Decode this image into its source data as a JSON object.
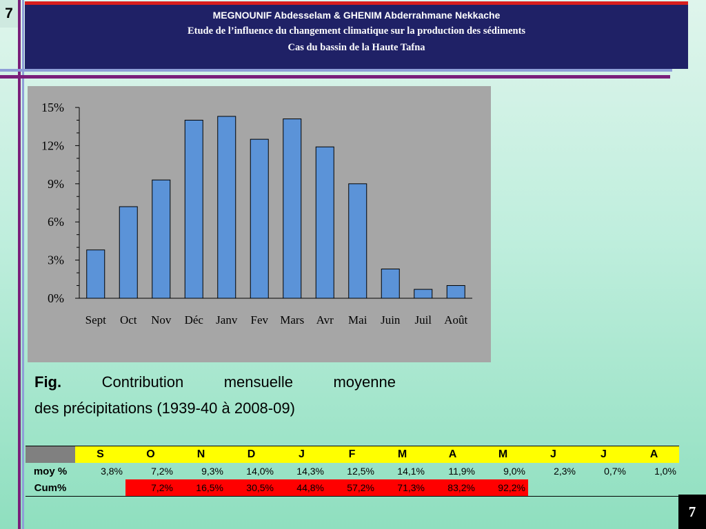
{
  "slide": {
    "number_top": "7",
    "number_bottom": "7"
  },
  "header": {
    "authors": "MEGNOUNIF Abdesselam & GHENIM Abderrahmane Nekkache",
    "title": "Etude de l’influence du changement climatique sur la production des sédiments",
    "subtitle": "Cas du bassin de la Haute Tafna"
  },
  "caption": {
    "label": "Fig.",
    "words": [
      "Contribution",
      "mensuelle",
      "moyenne"
    ],
    "line2": "des précipitations (1939-40 à 2008-09)"
  },
  "chart_data": {
    "type": "bar",
    "categories": [
      "Sept",
      "Oct",
      "Nov",
      "Déc",
      "Janv",
      "Fev",
      "Mars",
      "Avr",
      "Mai",
      "Juin",
      "Juil",
      "Août"
    ],
    "values": [
      3.8,
      7.2,
      9.3,
      14.0,
      14.3,
      12.5,
      14.1,
      11.9,
      9.0,
      2.3,
      0.7,
      1.0
    ],
    "yticks": [
      "0%",
      "3%",
      "6%",
      "9%",
      "12%",
      "15%"
    ],
    "ylim": [
      0,
      15
    ],
    "bar_color": "#5b93d8",
    "panel_color": "#a6a6a6",
    "title": "",
    "xlabel": "",
    "ylabel": ""
  },
  "table": {
    "headers": [
      "S",
      "O",
      "N",
      "D",
      "J",
      "F",
      "M",
      "A",
      "M",
      "J",
      "J",
      "A"
    ],
    "rows": [
      {
        "label": "moy %",
        "values": [
          "3,8%",
          "7,2%",
          "9,3%",
          "14,0%",
          "14,3%",
          "12,5%",
          "14,1%",
          "11,9%",
          "9,0%",
          "2,3%",
          "0,7%",
          "1,0%"
        ]
      },
      {
        "label": "Cum%",
        "values": [
          "",
          "7,2%",
          "16,5%",
          "30,5%",
          "44,8%",
          "57,2%",
          "71,3%",
          "83,2%",
          "92,2%",
          "",
          "",
          ""
        ]
      }
    ],
    "header_color": "#ffff00",
    "highlight_color": "#ff0000"
  }
}
